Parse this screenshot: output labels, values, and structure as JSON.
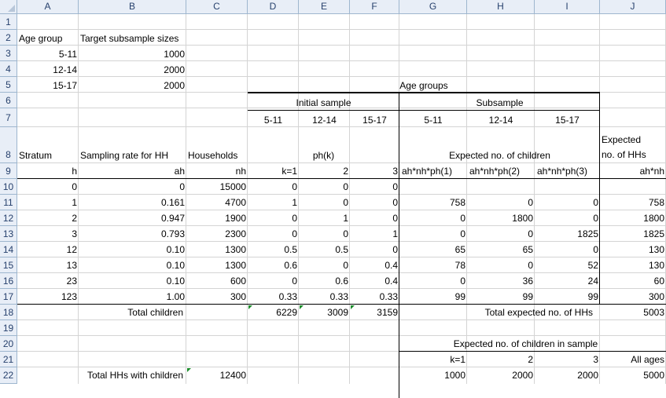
{
  "columns": [
    "A",
    "B",
    "C",
    "D",
    "E",
    "F",
    "G",
    "H",
    "I",
    "J"
  ],
  "rows": [
    "1",
    "2",
    "3",
    "4",
    "5",
    "6",
    "7",
    "8",
    "9",
    "10",
    "11",
    "12",
    "13",
    "14",
    "15",
    "16",
    "17",
    "18",
    "19",
    "20",
    "21",
    "22"
  ],
  "cells": {
    "A2": "Age group",
    "B2": "Target subsample sizes",
    "A3": "5-11",
    "B3": "1000",
    "A4": "12-14",
    "B4": "2000",
    "A5": "15-17",
    "B5": "2000",
    "G5": "Age groups",
    "E6": "Initial sample",
    "H6": "Subsample",
    "D7": "5-11",
    "E7": "12-14",
    "F7": "15-17",
    "G7": "5-11",
    "H7": "12-14",
    "I7": "15-17",
    "J8a": "Expected",
    "J8b": "no. of HHs",
    "A8": "Stratum",
    "B8": "Sampling rate for HH",
    "C8": "Households",
    "E8": "ph(k)",
    "H8": "Expected no. of children",
    "A9": "h",
    "B9": "ah",
    "C9": "nh",
    "D9": "k=1",
    "E9": "2",
    "F9": "3",
    "G9": "ah*nh*ph(1)",
    "H9": "ah*nh*ph(2)",
    "I9": "ah*nh*ph(3)",
    "J9": "ah*nh",
    "A10": "0",
    "B10": "0",
    "C10": "15000",
    "D10": "0",
    "E10": "0",
    "F10": "0",
    "A11": "1",
    "B11": "0.161",
    "C11": "4700",
    "D11": "1",
    "E11": "0",
    "F11": "0",
    "G11": "758",
    "H11": "0",
    "I11": "0",
    "J11": "758",
    "A12": "2",
    "B12": "0.947",
    "C12": "1900",
    "D12": "0",
    "E12": "1",
    "F12": "0",
    "G12": "0",
    "H12": "1800",
    "I12": "0",
    "J12": "1800",
    "A13": "3",
    "B13": "0.793",
    "C13": "2300",
    "D13": "0",
    "E13": "0",
    "F13": "1",
    "G13": "0",
    "H13": "0",
    "I13": "1825",
    "J13": "1825",
    "A14": "12",
    "B14": "0.10",
    "C14": "1300",
    "D14": "0.5",
    "E14": "0.5",
    "F14": "0",
    "G14": "65",
    "H14": "65",
    "I14": "0",
    "J14": "130",
    "A15": "13",
    "B15": "0.10",
    "C15": "1300",
    "D15": "0.6",
    "E15": "0",
    "F15": "0.4",
    "G15": "78",
    "H15": "0",
    "I15": "52",
    "J15": "130",
    "A16": "23",
    "B16": "0.10",
    "C16": "600",
    "D16": "0",
    "E16": "0.6",
    "F16": "0.4",
    "G16": "0",
    "H16": "36",
    "I16": "24",
    "J16": "60",
    "A17": "123",
    "B17": "1.00",
    "C17": "300",
    "D17": "0.33",
    "E17": "0.33",
    "F17": "0.33",
    "G17": "99",
    "H17": "99",
    "I17": "99",
    "J17": "300",
    "B18": "Total children",
    "D18": "6229",
    "E18": "3009",
    "F18": "3159",
    "H18": "Total expected no. of HHs",
    "J18": "5003",
    "H20": "Expected no. of children in sample",
    "G21": "k=1",
    "H21": "2",
    "I21": "3",
    "J21": "All ages",
    "B22": "Total HHs with children",
    "C22": "12400",
    "G22": "1000",
    "H22": "2000",
    "I22": "2000",
    "J22": "5000"
  }
}
